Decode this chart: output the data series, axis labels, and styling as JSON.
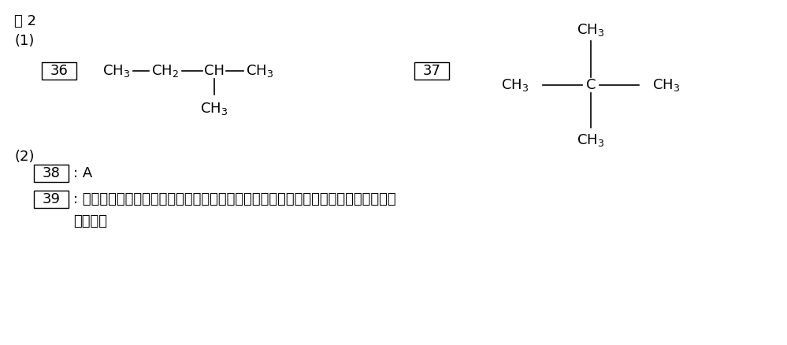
{
  "bg_color": "#ffffff",
  "title": "問 2",
  "section1": "(1)",
  "section2": "(2)",
  "box36": "36",
  "box37": "37",
  "box38": "38",
  "box39": "39",
  "label38_text": ": A",
  "label39_text": ": 同じ分子式の炭化水素では，分岐が多い方が分子間力が小さくなり，永点が低くな",
  "label39_text2": "るため。",
  "font_size_main": 13,
  "font_size_label": 12,
  "font_size_chem": 13
}
